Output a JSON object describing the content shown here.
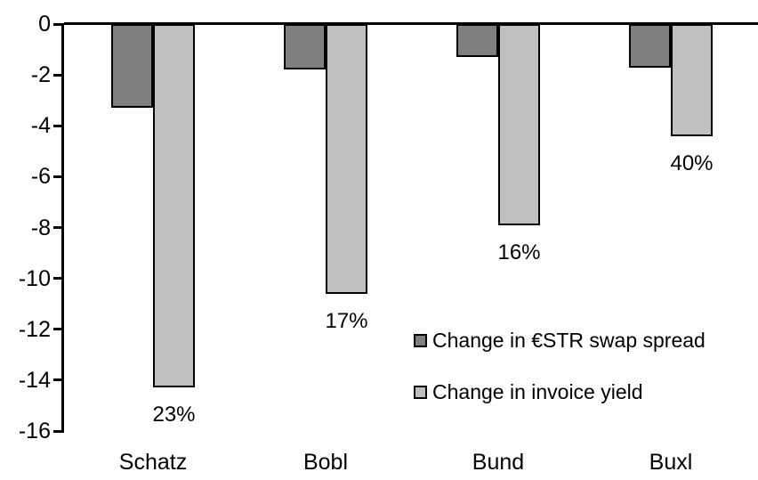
{
  "chart_data": {
    "type": "bar",
    "title": "",
    "xlabel": "",
    "ylabel": "",
    "categories": [
      "Schatz",
      "Bobl",
      "Bund",
      "Buxl"
    ],
    "series": [
      {
        "name": "Change in €STR swap spread",
        "color": "#7f7f7f",
        "values": [
          -3.3,
          -1.8,
          -1.3,
          -1.7
        ]
      },
      {
        "name": "Change in invoice yield",
        "color": "#c0c0c0",
        "values": [
          -14.3,
          -10.6,
          -7.9,
          -4.4
        ],
        "point_labels": [
          "23%",
          "17%",
          "16%",
          "40%"
        ]
      }
    ],
    "ylim": [
      -16,
      0
    ],
    "yticks": [
      0,
      -2,
      -4,
      -6,
      -8,
      -10,
      -12,
      -14,
      -16
    ],
    "grid": false,
    "legend_position": "inside-middle-right",
    "bar_outline_color": "#000000",
    "axis_color": "#000000",
    "background_color": "#ffffff"
  }
}
